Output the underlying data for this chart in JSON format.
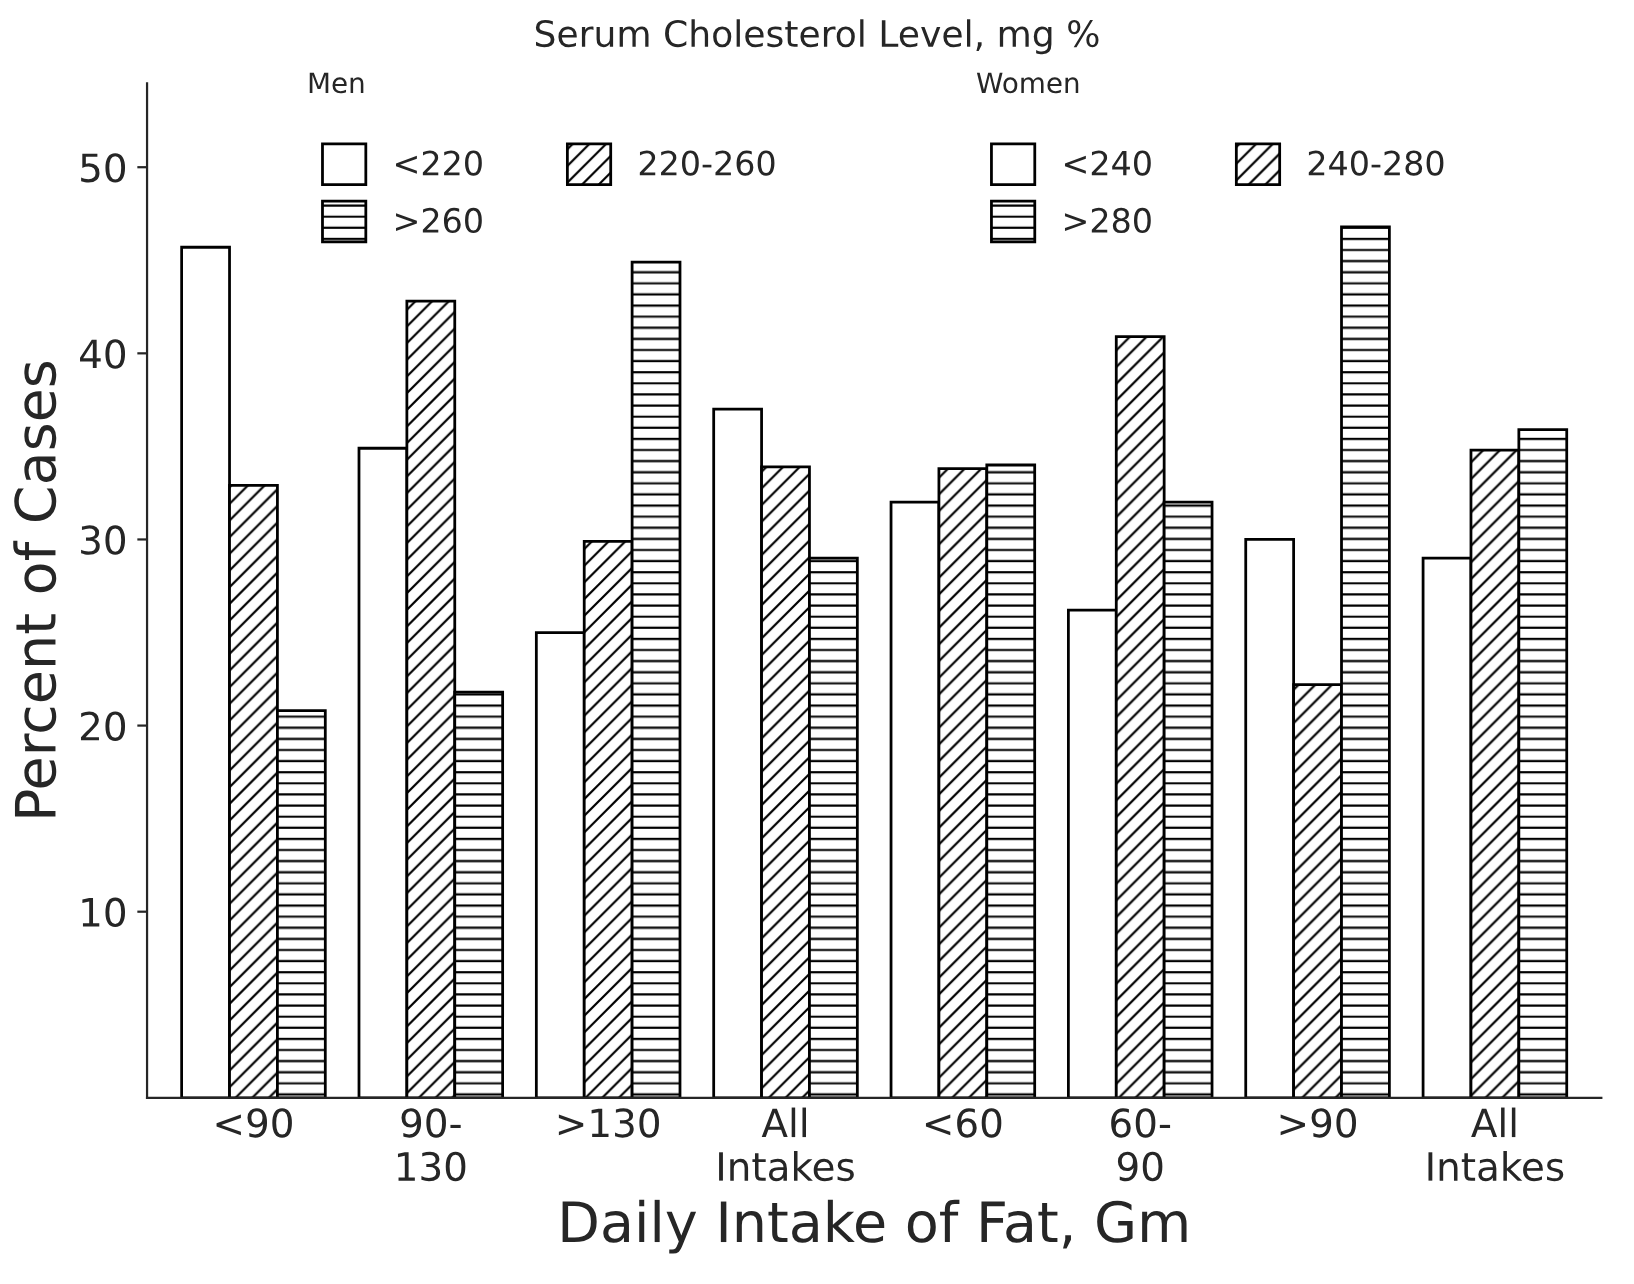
{
  "chart_data": {
    "type": "bar",
    "categories": [
      "<90",
      "90-\n130",
      ">130",
      "All\nIntakes",
      "<60",
      "60-\n90",
      ">90",
      "All\nIntakes"
    ],
    "series": [
      {
        "name": "<220",
        "color": "#ffffff",
        "values": [
          45.7,
          34.9,
          25.0,
          37.0,
          null,
          null,
          null,
          null
        ]
      },
      {
        "name": "220-260",
        "color": "#000000",
        "values": [
          32.9,
          42.8,
          29.9,
          33.9,
          null,
          null,
          null,
          null
        ]
      },
      {
        "name": ">260",
        "color": "#000000",
        "values": [
          20.8,
          21.8,
          44.9,
          29.0,
          null,
          null,
          null,
          null
        ]
      },
      {
        "name": "<240",
        "color": "#ffffff",
        "values": [
          null,
          null,
          null,
          null,
          32.0,
          26.2,
          30.0,
          29.0
        ]
      },
      {
        "name": "240-280",
        "color": "#000000",
        "values": [
          null,
          null,
          null,
          null,
          33.8,
          40.9,
          22.2,
          34.8
        ]
      },
      {
        "name": ">280",
        "color": "#000000",
        "values": [
          null,
          null,
          null,
          null,
          34.0,
          32.0,
          46.8,
          35.9
        ]
      }
    ],
    "xlabel": "Daily Intake of Fat, Gm",
    "ylabel": "Percent of Cases",
    "legend_title": "Serum Cholesterol Level, mg %",
    "annotations": [
      "Men",
      "Women"
    ],
    "ylim": [
      0,
      54.5
    ],
    "yticks": [
      10,
      20,
      30,
      40,
      50
    ],
    "grid": false,
    "legend": "top"
  }
}
